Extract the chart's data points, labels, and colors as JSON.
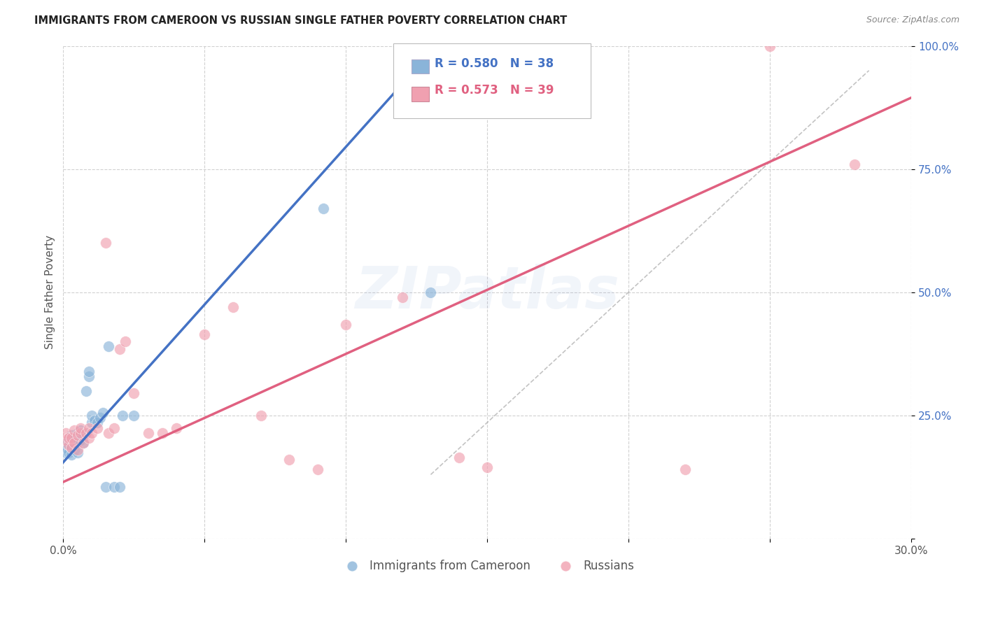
{
  "title": "IMMIGRANTS FROM CAMEROON VS RUSSIAN SINGLE FATHER POVERTY CORRELATION CHART",
  "source": "Source: ZipAtlas.com",
  "ylabel": "Single Father Poverty",
  "xlim": [
    0.0,
    0.3
  ],
  "ylim": [
    0.0,
    1.0
  ],
  "ytick_values": [
    0.0,
    0.25,
    0.5,
    0.75,
    1.0
  ],
  "ytick_labels": [
    "",
    "25.0%",
    "50.0%",
    "75.0%",
    "100.0%"
  ],
  "xtick_values": [
    0.0,
    0.05,
    0.1,
    0.15,
    0.2,
    0.25,
    0.3
  ],
  "xtick_labels": [
    "0.0%",
    "",
    "",
    "",
    "",
    "",
    "30.0%"
  ],
  "blue_color": "#8ab4d9",
  "pink_color": "#f0a0b0",
  "blue_line_color": "#4472c4",
  "pink_line_color": "#e06080",
  "legend_blue_label": "Immigrants from Cameroon",
  "legend_pink_label": "Russians",
  "R_blue": 0.58,
  "N_blue": 38,
  "R_pink": 0.573,
  "N_pink": 39,
  "watermark": "ZIPatlas",
  "blue_points_x": [
    0.001,
    0.001,
    0.001,
    0.002,
    0.002,
    0.002,
    0.003,
    0.003,
    0.003,
    0.003,
    0.004,
    0.004,
    0.004,
    0.005,
    0.005,
    0.005,
    0.006,
    0.006,
    0.007,
    0.007,
    0.008,
    0.008,
    0.009,
    0.009,
    0.01,
    0.01,
    0.011,
    0.012,
    0.013,
    0.014,
    0.015,
    0.016,
    0.018,
    0.02,
    0.021,
    0.025,
    0.092,
    0.13
  ],
  "blue_points_y": [
    0.175,
    0.185,
    0.195,
    0.175,
    0.19,
    0.2,
    0.17,
    0.185,
    0.2,
    0.21,
    0.18,
    0.195,
    0.205,
    0.175,
    0.195,
    0.215,
    0.2,
    0.22,
    0.195,
    0.215,
    0.215,
    0.3,
    0.33,
    0.34,
    0.235,
    0.25,
    0.24,
    0.235,
    0.245,
    0.255,
    0.105,
    0.39,
    0.105,
    0.105,
    0.25,
    0.25,
    0.67,
    0.5
  ],
  "pink_points_x": [
    0.001,
    0.001,
    0.002,
    0.002,
    0.003,
    0.003,
    0.004,
    0.004,
    0.005,
    0.005,
    0.006,
    0.006,
    0.007,
    0.008,
    0.009,
    0.009,
    0.01,
    0.012,
    0.015,
    0.016,
    0.018,
    0.02,
    0.022,
    0.025,
    0.03,
    0.035,
    0.04,
    0.05,
    0.06,
    0.07,
    0.08,
    0.09,
    0.1,
    0.12,
    0.14,
    0.15,
    0.22,
    0.25,
    0.28
  ],
  "pink_points_y": [
    0.2,
    0.215,
    0.19,
    0.205,
    0.185,
    0.205,
    0.195,
    0.22,
    0.18,
    0.21,
    0.215,
    0.225,
    0.195,
    0.215,
    0.205,
    0.225,
    0.215,
    0.225,
    0.6,
    0.215,
    0.225,
    0.385,
    0.4,
    0.295,
    0.215,
    0.215,
    0.225,
    0.415,
    0.47,
    0.25,
    0.16,
    0.14,
    0.435,
    0.49,
    0.165,
    0.145,
    0.14,
    1.0,
    0.76
  ],
  "blue_line_x": [
    0.0,
    0.132
  ],
  "blue_line_y": [
    0.155,
    1.0
  ],
  "pink_line_x": [
    0.0,
    0.3
  ],
  "pink_line_y": [
    0.115,
    0.895
  ],
  "ref_line_x": [
    0.13,
    0.285
  ],
  "ref_line_y": [
    0.13,
    0.95
  ]
}
